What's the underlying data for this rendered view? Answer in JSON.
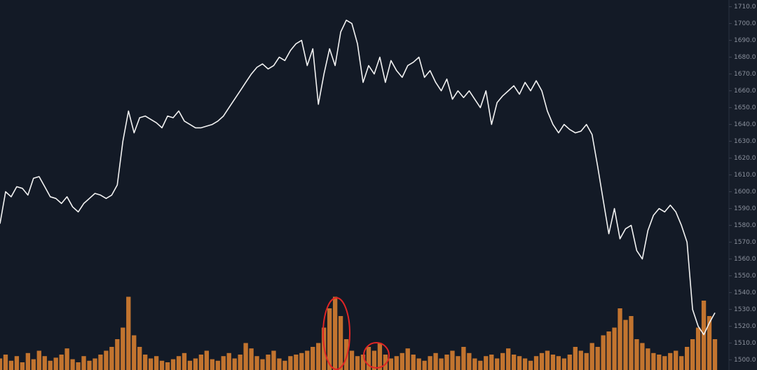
{
  "chart_data": {
    "type": "line",
    "ylim": [
      1494,
      1714
    ],
    "yticks": [
      {
        "value": 1710,
        "label": "1710.0"
      },
      {
        "value": 1700,
        "label": "1700.0"
      },
      {
        "value": 1690,
        "label": "1690.0"
      },
      {
        "value": 1680,
        "label": "1680.0"
      },
      {
        "value": 1670,
        "label": "1670.0"
      },
      {
        "value": 1660,
        "label": "1660.0"
      },
      {
        "value": 1650,
        "label": "1650.0"
      },
      {
        "value": 1640,
        "label": "1640.0"
      },
      {
        "value": 1630,
        "label": "1630.0"
      },
      {
        "value": 1620,
        "label": "1620.0"
      },
      {
        "value": 1610,
        "label": "1610.0"
      },
      {
        "value": 1600,
        "label": "1600.0"
      },
      {
        "value": 1590,
        "label": "1590.0"
      },
      {
        "value": 1580,
        "label": "1580.0"
      },
      {
        "value": 1570,
        "label": "1570.0"
      },
      {
        "value": 1560,
        "label": "1560.0"
      },
      {
        "value": 1550,
        "label": "1550.0"
      },
      {
        "value": 1540,
        "label": "1540.0"
      },
      {
        "value": 1530,
        "label": "1530.0"
      },
      {
        "value": 1520,
        "label": "1520.0"
      },
      {
        "value": 1510,
        "label": "1510.0"
      },
      {
        "value": 1500,
        "label": "1500.0"
      }
    ],
    "y2lim": [
      0,
      100
    ],
    "series": [
      {
        "color": "#f2f2f2",
        "values": [
          1581,
          1600,
          1597,
          1603,
          1602,
          1598,
          1608,
          1609,
          1603,
          1597,
          1596,
          1593,
          1597,
          1591,
          1588,
          1593,
          1596,
          1599,
          1598,
          1596,
          1598,
          1604,
          1630,
          1648,
          1635,
          1644,
          1645,
          1643,
          1641,
          1638,
          1645,
          1644,
          1648,
          1642,
          1640,
          1638,
          1638,
          1639,
          1640,
          1642,
          1645,
          1650,
          1655,
          1660,
          1665,
          1670,
          1674,
          1676,
          1673,
          1675,
          1680,
          1678,
          1684,
          1688,
          1690,
          1675,
          1685,
          1652,
          1670,
          1685,
          1675,
          1695,
          1702,
          1700,
          1688,
          1665,
          1675,
          1670,
          1680,
          1665,
          1678,
          1672,
          1668,
          1675,
          1677,
          1680,
          1668,
          1672,
          1665,
          1660,
          1667,
          1655,
          1660,
          1656,
          1660,
          1655,
          1650,
          1660,
          1640,
          1653,
          1657,
          1660,
          1663,
          1658,
          1665,
          1660,
          1666,
          1660,
          1648,
          1640,
          1635,
          1640,
          1637,
          1635,
          1636,
          1640,
          1634,
          1615,
          1595,
          1575,
          1590,
          1572,
          1578,
          1580,
          1565,
          1560,
          1577,
          1586,
          1590,
          1588,
          1592,
          1588,
          1580,
          1570,
          1530,
          1520,
          1515,
          1522,
          1528
        ]
      },
      {
        "color": "#c2742f",
        "axis": "y2",
        "values": [
          15,
          20,
          12,
          18,
          10,
          22,
          14,
          25,
          18,
          12,
          16,
          20,
          28,
          14,
          10,
          18,
          12,
          15,
          20,
          25,
          30,
          40,
          55,
          95,
          45,
          30,
          20,
          15,
          18,
          12,
          10,
          14,
          18,
          22,
          12,
          15,
          20,
          25,
          14,
          12,
          18,
          22,
          15,
          20,
          35,
          28,
          18,
          14,
          20,
          25,
          15,
          12,
          18,
          20,
          22,
          25,
          30,
          35,
          55,
          80,
          95,
          70,
          40,
          25,
          18,
          20,
          30,
          25,
          35,
          20,
          15,
          18,
          22,
          28,
          20,
          15,
          12,
          18,
          22,
          15,
          20,
          25,
          18,
          30,
          22,
          15,
          12,
          18,
          20,
          15,
          22,
          28,
          20,
          18,
          15,
          12,
          18,
          22,
          25,
          20,
          18,
          15,
          20,
          30,
          25,
          22,
          35,
          30,
          45,
          50,
          55,
          80,
          65,
          70,
          40,
          35,
          28,
          22,
          20,
          18,
          22,
          25,
          18,
          30,
          40,
          55,
          90,
          70,
          40
        ]
      }
    ]
  }
}
